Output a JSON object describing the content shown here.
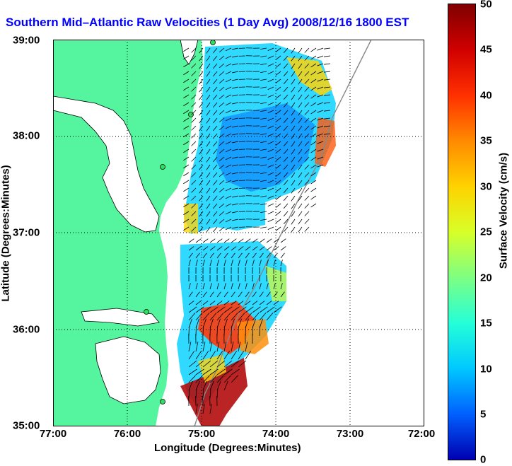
{
  "title": "Southern Mid–Atlantic Raw Velocities (1 Day Avg) 2008/12/16 1800 EST",
  "x_axis": {
    "label": "Longitude (Degrees:Minutes)",
    "ticks": [
      "77:00",
      "76:00",
      "75:00",
      "74:00",
      "73:00",
      "72:00"
    ]
  },
  "y_axis": {
    "label": "Latitude (Degrees:Minutes)",
    "ticks": [
      "39:00",
      "38:00",
      "37:00",
      "36:00",
      "35:00"
    ]
  },
  "colorbar": {
    "label": "Surface Velocity (cm/s)",
    "ticks": [
      "50",
      "45",
      "40",
      "35",
      "30",
      "25",
      "20",
      "15",
      "10",
      "5",
      "0"
    ],
    "colors": [
      "#7f0000",
      "#d00000",
      "#ff3000",
      "#ff8a00",
      "#ffd200",
      "#d8ff28",
      "#7dff82",
      "#25ffd8",
      "#00c8ff",
      "#0060ff",
      "#0000b0"
    ]
  },
  "colors": {
    "land": "#55f5a0",
    "title": "#0000ff",
    "coast": "#000000",
    "vectors": "#000000"
  },
  "legend": "right colorbar",
  "grid": "dotted",
  "stations": [
    "site-1",
    "site-2",
    "site-3",
    "site-4",
    "site-5"
  ]
}
